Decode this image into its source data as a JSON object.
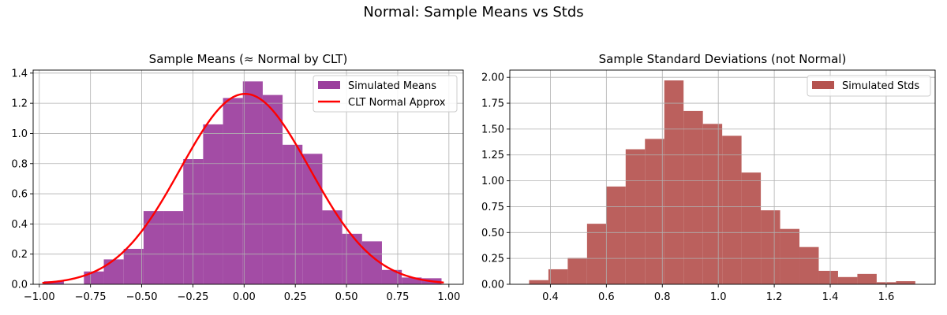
{
  "figure": {
    "suptitle": "Normal: Sample Means vs Stds"
  },
  "chart_data": [
    {
      "type": "bar",
      "title": "Sample Means (≈ Normal by CLT)",
      "xlabel": "",
      "ylabel": "",
      "xlim": [
        -1.03,
        1.07
      ],
      "ylim": [
        0,
        1.42
      ],
      "xticks": [
        -1.0,
        -0.75,
        -0.5,
        -0.25,
        0.0,
        0.25,
        0.5,
        0.75,
        1.0
      ],
      "xtick_labels": [
        "−1.00",
        "−0.75",
        "−0.50",
        "−0.25",
        "0.00",
        "0.25",
        "0.50",
        "0.75",
        "1.00"
      ],
      "yticks": [
        0.0,
        0.2,
        0.4,
        0.6,
        0.8,
        1.0,
        1.2,
        1.4
      ],
      "ytick_labels": [
        "0.0",
        "0.2",
        "0.4",
        "0.6",
        "0.8",
        "1.0",
        "1.2",
        "1.4"
      ],
      "grid": true,
      "legend_position": "top-right",
      "bar_color": "#9b3d9d",
      "bins": [
        {
          "x0": -0.977,
          "x1": -0.88,
          "value": 0.02
        },
        {
          "x0": -0.88,
          "x1": -0.782,
          "value": 0.0
        },
        {
          "x0": -0.782,
          "x1": -0.685,
          "value": 0.085
        },
        {
          "x0": -0.685,
          "x1": -0.588,
          "value": 0.165
        },
        {
          "x0": -0.588,
          "x1": -0.491,
          "value": 0.235
        },
        {
          "x0": -0.491,
          "x1": -0.394,
          "value": 0.485
        },
        {
          "x0": -0.394,
          "x1": -0.297,
          "value": 0.485
        },
        {
          "x0": -0.297,
          "x1": -0.2,
          "value": 0.83
        },
        {
          "x0": -0.2,
          "x1": -0.103,
          "value": 1.06
        },
        {
          "x0": -0.103,
          "x1": -0.006,
          "value": 1.235
        },
        {
          "x0": -0.006,
          "x1": 0.091,
          "value": 1.345
        },
        {
          "x0": 0.091,
          "x1": 0.188,
          "value": 1.255
        },
        {
          "x0": 0.188,
          "x1": 0.285,
          "value": 0.925
        },
        {
          "x0": 0.285,
          "x1": 0.382,
          "value": 0.865
        },
        {
          "x0": 0.382,
          "x1": 0.479,
          "value": 0.49
        },
        {
          "x0": 0.479,
          "x1": 0.576,
          "value": 0.335
        },
        {
          "x0": 0.576,
          "x1": 0.673,
          "value": 0.285
        },
        {
          "x0": 0.673,
          "x1": 0.77,
          "value": 0.095
        },
        {
          "x0": 0.77,
          "x1": 0.867,
          "value": 0.045
        },
        {
          "x0": 0.867,
          "x1": 0.964,
          "value": 0.04
        }
      ],
      "curve": {
        "name": "CLT Normal Approx",
        "color": "#ff0000",
        "mean": 0.005,
        "sd": 0.316,
        "x_start": -0.985,
        "x_end": 0.975
      },
      "series": [
        {
          "name": "Simulated Means",
          "kind": "histogram",
          "color": "#9b3d9d"
        },
        {
          "name": "CLT Normal Approx",
          "kind": "line",
          "color": "#ff0000"
        }
      ]
    },
    {
      "type": "bar",
      "title": "Sample Standard Deviations (not Normal)",
      "xlabel": "",
      "ylabel": "",
      "xlim": [
        0.255,
        1.775
      ],
      "ylim": [
        0,
        2.07
      ],
      "xticks": [
        0.4,
        0.6,
        0.8,
        1.0,
        1.2,
        1.4,
        1.6
      ],
      "xtick_labels": [
        "0.4",
        "0.6",
        "0.8",
        "1.0",
        "1.2",
        "1.4",
        "1.6"
      ],
      "yticks": [
        0.0,
        0.25,
        0.5,
        0.75,
        1.0,
        1.25,
        1.5,
        1.75,
        2.0
      ],
      "ytick_labels": [
        "0.00",
        "0.25",
        "0.50",
        "0.75",
        "1.00",
        "1.25",
        "1.50",
        "1.75",
        "2.00"
      ],
      "grid": true,
      "legend_position": "top-right",
      "bar_color": "#b5534f",
      "bins": [
        {
          "x0": 0.324,
          "x1": 0.393,
          "value": 0.04
        },
        {
          "x0": 0.393,
          "x1": 0.462,
          "value": 0.145
        },
        {
          "x0": 0.462,
          "x1": 0.531,
          "value": 0.255
        },
        {
          "x0": 0.531,
          "x1": 0.6,
          "value": 0.585
        },
        {
          "x0": 0.6,
          "x1": 0.669,
          "value": 0.945
        },
        {
          "x0": 0.669,
          "x1": 0.738,
          "value": 1.305
        },
        {
          "x0": 0.738,
          "x1": 0.807,
          "value": 1.405
        },
        {
          "x0": 0.807,
          "x1": 0.876,
          "value": 1.97
        },
        {
          "x0": 0.876,
          "x1": 0.945,
          "value": 1.675
        },
        {
          "x0": 0.945,
          "x1": 1.014,
          "value": 1.55
        },
        {
          "x0": 1.014,
          "x1": 1.083,
          "value": 1.435
        },
        {
          "x0": 1.083,
          "x1": 1.152,
          "value": 1.08
        },
        {
          "x0": 1.152,
          "x1": 1.221,
          "value": 0.715
        },
        {
          "x0": 1.221,
          "x1": 1.29,
          "value": 0.535
        },
        {
          "x0": 1.29,
          "x1": 1.359,
          "value": 0.36
        },
        {
          "x0": 1.359,
          "x1": 1.428,
          "value": 0.13
        },
        {
          "x0": 1.428,
          "x1": 1.497,
          "value": 0.07
        },
        {
          "x0": 1.497,
          "x1": 1.566,
          "value": 0.1
        },
        {
          "x0": 1.566,
          "x1": 1.635,
          "value": 0.02
        },
        {
          "x0": 1.635,
          "x1": 1.704,
          "value": 0.03
        }
      ],
      "series": [
        {
          "name": "Simulated Stds",
          "kind": "histogram",
          "color": "#b5534f"
        }
      ]
    }
  ]
}
